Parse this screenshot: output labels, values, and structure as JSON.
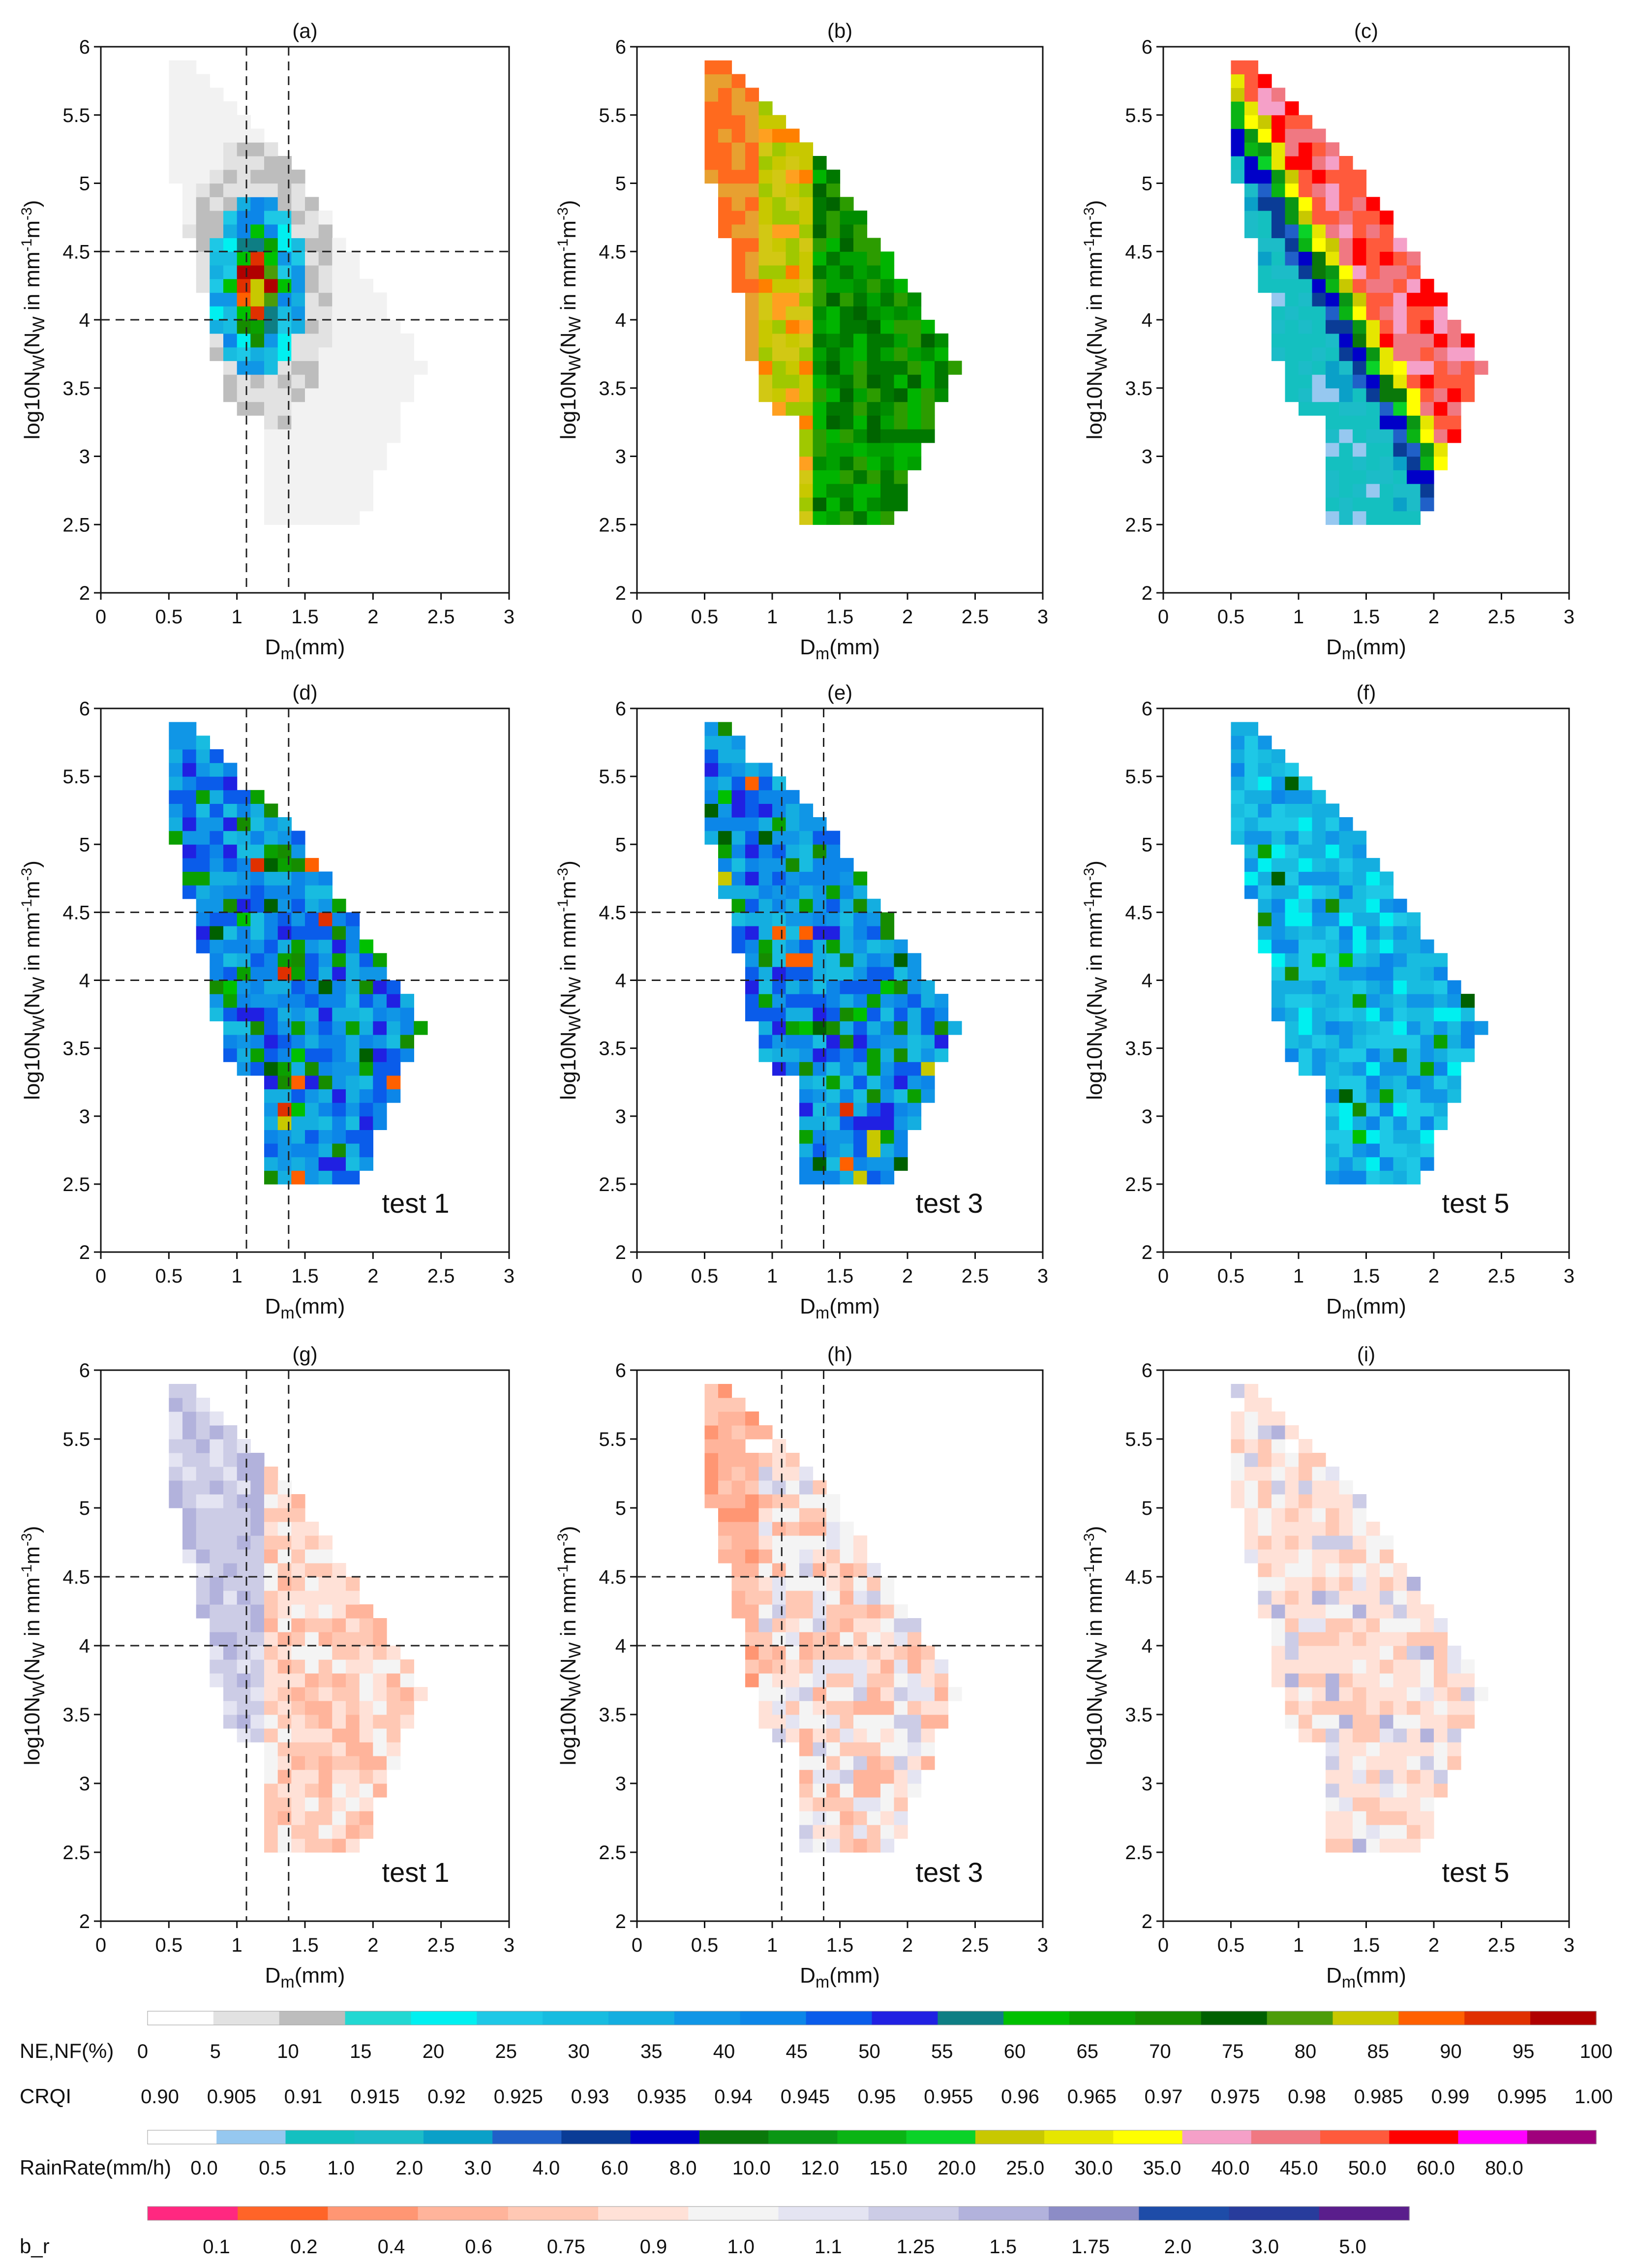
{
  "figure": {
    "axis_common": {
      "xlabel_main": "D",
      "xlabel_sub": "m",
      "xlabel_unit": "(mm)",
      "ylabel_prefix": "log10N",
      "ylabel_sub": "W",
      "ylabel_mid": "(N",
      "ylabel_sub2": "W",
      "ylabel_units": " in mm",
      "ylabel_exp1": "-1",
      "ylabel_m": "m",
      "ylabel_exp2": "-3",
      "ylabel_close": ")",
      "xticks": [
        "0",
        "0.5",
        "1",
        "1.5",
        "2",
        "2.5",
        "3"
      ],
      "yticks": [
        "2",
        "2.5",
        "3",
        "3.5",
        "4",
        "4.5",
        "5",
        "5.5",
        "6"
      ],
      "xlim": [
        0,
        3
      ],
      "ylim": [
        2,
        6
      ]
    }
  },
  "chart_data": [
    {
      "type": "heatmap",
      "id": "a",
      "title": "(a)",
      "label": "",
      "field": "NE,NF(%)",
      "dashed_x": [
        1.07,
        1.38
      ],
      "dashed_y": [
        4.0,
        4.5
      ],
      "xlim": [
        0,
        3
      ],
      "ylim": [
        2,
        6
      ]
    },
    {
      "type": "heatmap",
      "id": "b",
      "title": "(b)",
      "label": "",
      "field": "CRQI",
      "dashed_x": [],
      "dashed_y": [],
      "xlim": [
        0,
        3
      ],
      "ylim": [
        2,
        6
      ]
    },
    {
      "type": "heatmap",
      "id": "c",
      "title": "(c)",
      "label": "",
      "field": "RainRate(mm/h)",
      "dashed_x": [],
      "dashed_y": [],
      "xlim": [
        0,
        3
      ],
      "ylim": [
        2,
        6
      ]
    },
    {
      "type": "heatmap",
      "id": "d",
      "title": "(d)",
      "label": "test 1",
      "field": "NE,NF(%)",
      "dashed_x": [
        1.07,
        1.38
      ],
      "dashed_y": [
        4.0,
        4.5
      ],
      "xlim": [
        0,
        3
      ],
      "ylim": [
        2,
        6
      ]
    },
    {
      "type": "heatmap",
      "id": "e",
      "title": "(e)",
      "label": "test 3",
      "field": "NE,NF(%)",
      "dashed_x": [
        1.07,
        1.38
      ],
      "dashed_y": [
        4.0,
        4.5
      ],
      "xlim": [
        0,
        3
      ],
      "ylim": [
        2,
        6
      ]
    },
    {
      "type": "heatmap",
      "id": "f",
      "title": "(f)",
      "label": "test 5",
      "field": "NE,NF(%)",
      "dashed_x": [],
      "dashed_y": [],
      "xlim": [
        0,
        3
      ],
      "ylim": [
        2,
        6
      ]
    },
    {
      "type": "heatmap",
      "id": "g",
      "title": "(g)",
      "label": "test 1",
      "field": "b_r",
      "dashed_x": [
        1.07,
        1.38
      ],
      "dashed_y": [
        4.0,
        4.5
      ],
      "xlim": [
        0,
        3
      ],
      "ylim": [
        2,
        6
      ]
    },
    {
      "type": "heatmap",
      "id": "h",
      "title": "(h)",
      "label": "test 3",
      "field": "b_r",
      "dashed_x": [
        1.07,
        1.38
      ],
      "dashed_y": [
        4.0,
        4.5
      ],
      "xlim": [
        0,
        3
      ],
      "ylim": [
        2,
        6
      ]
    },
    {
      "type": "heatmap",
      "id": "i",
      "title": "(i)",
      "label": "test 5",
      "field": "b_r",
      "dashed_x": [],
      "dashed_y": [],
      "xlim": [
        0,
        3
      ],
      "ylim": [
        2,
        6
      ]
    }
  ],
  "legends": {
    "ne_nf": {
      "name": "NE,NF(%)",
      "ticks": [
        "0",
        "5",
        "10",
        "15",
        "20",
        "25",
        "30",
        "35",
        "40",
        "45",
        "50",
        "55",
        "60",
        "65",
        "70",
        "75",
        "80",
        "85",
        "90",
        "95",
        "100"
      ],
      "colors": [
        "#ffffff",
        "#e2e2e2",
        "#bdbdbd",
        "#22d8d2",
        "#00f0f0",
        "#1ec8e6",
        "#18bce0",
        "#14aee0",
        "#1096e6",
        "#0c86e8",
        "#0a5cea",
        "#2020e2",
        "#0e7e84",
        "#00c000",
        "#0aa000",
        "#168c00",
        "#006000",
        "#4c9c0a",
        "#c8c800",
        "#ff6000",
        "#e03000",
        "#b00000"
      ]
    },
    "crqi": {
      "name": "CRQI",
      "ticks": [
        "0.90",
        "0.905",
        "0.91",
        "0.915",
        "0.92",
        "0.925",
        "0.93",
        "0.935",
        "0.94",
        "0.945",
        "0.95",
        "0.955",
        "0.96",
        "0.965",
        "0.97",
        "0.975",
        "0.98",
        "0.985",
        "0.99",
        "0.995",
        "1.00"
      ]
    },
    "rainrate": {
      "name": "RainRate(mm/h)",
      "ticks": [
        "0.0",
        "0.5",
        "1.0",
        "2.0",
        "3.0",
        "4.0",
        "6.0",
        "8.0",
        "10.0",
        "12.0",
        "15.0",
        "20.0",
        "25.0",
        "30.0",
        "35.0",
        "40.0",
        "45.0",
        "50.0",
        "60.0",
        "80.0"
      ],
      "colors": [
        "#ffffff",
        "#96c8f0",
        "#14c0c0",
        "#1cbcc8",
        "#0aa0c8",
        "#2060c8",
        "#0a3c96",
        "#0000c8",
        "#0a780a",
        "#0a9614",
        "#0ab414",
        "#0ad228",
        "#c8c800",
        "#e6e600",
        "#ffff00",
        "#f5a0c8",
        "#f07882",
        "#ff5a3c",
        "#ff0000",
        "#ff00ff",
        "#a0007c"
      ]
    },
    "b_r": {
      "name": "b_r",
      "ticks": [
        "0.1",
        "0.2",
        "0.4",
        "0.6",
        "0.75",
        "0.9",
        "1.0",
        "1.1",
        "1.25",
        "1.5",
        "1.75",
        "2.0",
        "3.0",
        "5.0"
      ],
      "colors": [
        "#ff2880",
        "#ff6428",
        "#ff9673",
        "#ffb49b",
        "#ffc8b4",
        "#ffe1d7",
        "#f4f4f4",
        "#e4e4f2",
        "#cccce6",
        "#b2b2dc",
        "#8c8cc6",
        "#1e4ca8",
        "#283c9c",
        "#5a1e8c"
      ]
    }
  }
}
